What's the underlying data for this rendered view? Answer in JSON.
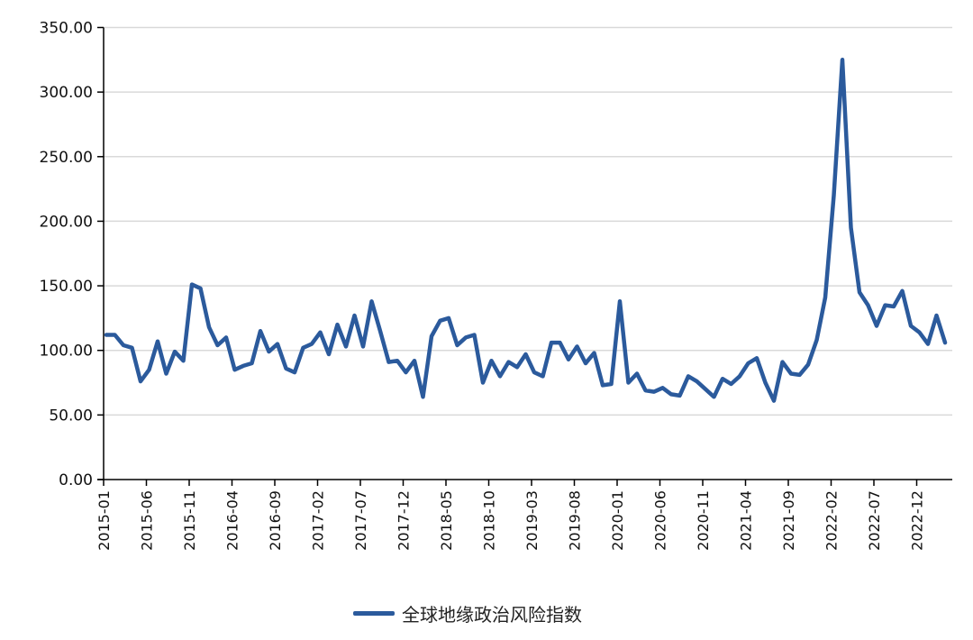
{
  "chart_data": {
    "type": "line",
    "title": "",
    "xlabel": "",
    "ylabel": "",
    "ylim": [
      0,
      350
    ],
    "yticks": [
      "0.00",
      "50.00",
      "100.00",
      "150.00",
      "200.00",
      "250.00",
      "300.00",
      "350.00"
    ],
    "xticks": [
      "2015-01",
      "2015-06",
      "2015-11",
      "2016-04",
      "2016-09",
      "2017-02",
      "2017-07",
      "2017-12",
      "2018-05",
      "2018-10",
      "2019-03",
      "2019-08",
      "2020-01",
      "2020-06",
      "2020-11",
      "2021-04",
      "2021-09",
      "2022-02",
      "2022-07",
      "2022-12"
    ],
    "grid": true,
    "legend_position": "bottom",
    "series": [
      {
        "name": "全球地缘政治风险指数",
        "color": "#2b5a9c",
        "start": "2015-01",
        "values": [
          112,
          112,
          104,
          102,
          76,
          85,
          107,
          82,
          99,
          92,
          151,
          148,
          118,
          104,
          110,
          85,
          88,
          90,
          115,
          99,
          105,
          86,
          83,
          102,
          105,
          114,
          97,
          120,
          103,
          127,
          103,
          138,
          115,
          91,
          92,
          83,
          92,
          64,
          111,
          123,
          125,
          104,
          110,
          112,
          75,
          92,
          80,
          91,
          87,
          97,
          83,
          80,
          106,
          106,
          93,
          103,
          90,
          98,
          73,
          74,
          138,
          75,
          82,
          69,
          68,
          71,
          66,
          65,
          80,
          76,
          70,
          64,
          78,
          74,
          80,
          90,
          94,
          75,
          61,
          91,
          82,
          81,
          89,
          108,
          141,
          220,
          325,
          195,
          145,
          135,
          119,
          135,
          134,
          146,
          119,
          114,
          105,
          127,
          106
        ]
      }
    ]
  },
  "legend": {
    "label": "全球地缘政治风险指数"
  }
}
